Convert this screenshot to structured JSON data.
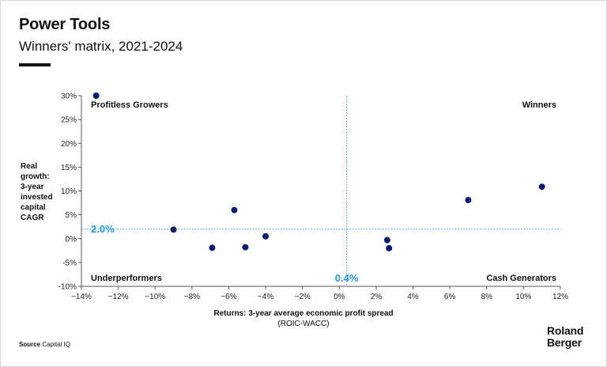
{
  "title": "Power Tools",
  "subtitle": "Winners' matrix, 2021-2024",
  "source": {
    "label": "Source",
    "text": "Capital IQ"
  },
  "logo": {
    "line1": "Roland",
    "line2": "Berger"
  },
  "colors": {
    "points": "#0b1a6e",
    "reference": "#1e9be6",
    "axis": "#555555",
    "text": "#111111"
  },
  "chart_data": {
    "type": "scatter",
    "title": "Winners' matrix, 2021-2024",
    "xlabel": "Returns: 3-year average economic profit spread",
    "xlabel_sub": "(ROIC-WACC)",
    "ylabel": [
      "Real",
      "growth:",
      "3-year",
      "invested",
      "capital",
      "CAGR"
    ],
    "xlim": [
      -14,
      12
    ],
    "ylim": [
      -10,
      30
    ],
    "x_ticks": [
      -14,
      -12,
      -10,
      -8,
      -6,
      -4,
      -2,
      0,
      2,
      4,
      6,
      8,
      10,
      12
    ],
    "y_ticks": [
      30,
      25,
      20,
      15,
      10,
      5,
      0,
      -5,
      -10
    ],
    "tick_suffix": "%",
    "reference_lines": {
      "x": 0.4,
      "y": 2.0,
      "x_label": "0.4%",
      "y_label": "2.0%"
    },
    "quadrants": {
      "top_left": "Profitless Growers",
      "top_right": "Winners",
      "bottom_left": "Underperformers",
      "bottom_right": "Cash Generators"
    },
    "points": [
      {
        "x": -13.2,
        "y": 30.0
      },
      {
        "x": -9.0,
        "y": 1.9
      },
      {
        "x": -6.9,
        "y": -1.9
      },
      {
        "x": -5.7,
        "y": 6.0
      },
      {
        "x": -5.1,
        "y": -1.8
      },
      {
        "x": -4.0,
        "y": 0.5
      },
      {
        "x": 2.6,
        "y": -0.3
      },
      {
        "x": 2.7,
        "y": -2.0
      },
      {
        "x": 7.0,
        "y": 8.1
      },
      {
        "x": 11.0,
        "y": 10.9
      }
    ],
    "grid": false
  }
}
